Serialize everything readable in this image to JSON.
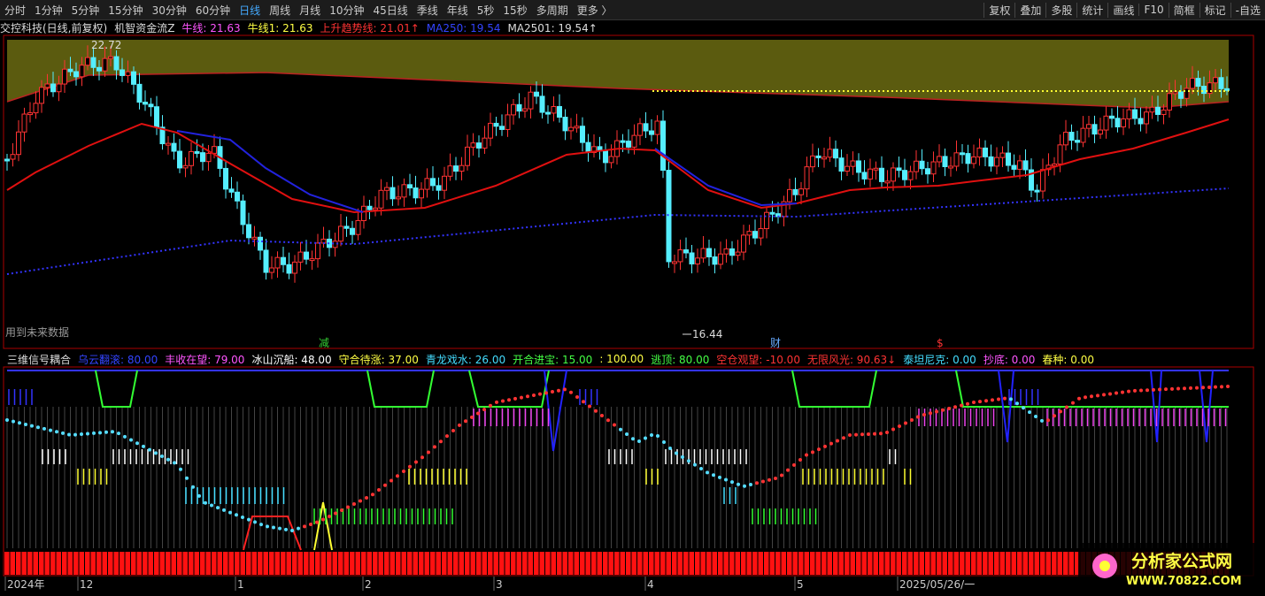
{
  "toolbar": {
    "periods": [
      "分时",
      "1分钟",
      "5分钟",
      "15分钟",
      "30分钟",
      "60分钟",
      "日线",
      "周线",
      "月线",
      "10分钟",
      "45日线",
      "季线",
      "年线",
      "5秒",
      "15秒",
      "多周期",
      "更多 〉"
    ],
    "active": "日线",
    "tools": [
      "复权",
      "叠加",
      "多股",
      "统计",
      "画线",
      "F10",
      "简框",
      "标记",
      "-自选"
    ]
  },
  "main_header": [
    {
      "text": "交控科技(日线,前复权)",
      "color": "#dddddd"
    },
    {
      "text": "机智资金流Z",
      "color": "#dddddd"
    },
    {
      "text": "牛线: 21.63",
      "color": "#ff55ff"
    },
    {
      "text": "牛线1: 21.63",
      "color": "#ffff44"
    },
    {
      "text": "上升趋势线: 21.01↑",
      "color": "#ff3333"
    },
    {
      "text": "MA250: 19.54",
      "color": "#3344ff"
    },
    {
      "text": "MA2501: 19.54↑",
      "color": "#dddddd"
    }
  ],
  "annotations": {
    "high": "22.72",
    "low": "16.44",
    "note": "用到未来数据",
    "mark1": "减",
    "mark2": "财",
    "mark3": "$"
  },
  "sub_header": [
    {
      "text": "三维信号耦合",
      "color": "#dddddd"
    },
    {
      "text": "乌云翻滚: 80.00",
      "color": "#3344ff"
    },
    {
      "text": "丰收在望: 79.00",
      "color": "#ff55ff"
    },
    {
      "text": "冰山沉船: 48.00",
      "color": "#ffffff"
    },
    {
      "text": "守合待涨: 37.00",
      "color": "#ffff44"
    },
    {
      "text": "青龙戏水: 26.00",
      "color": "#44ddff"
    },
    {
      "text": "开合进宝: 15.00",
      "color": "#44ff44"
    },
    {
      "text": ": 100.00",
      "color": "#ffff44"
    },
    {
      "text": "逃顶: 80.00",
      "color": "#44ff44"
    },
    {
      "text": "空仓观望: -10.00",
      "color": "#ff3333"
    },
    {
      "text": "无限风光: 90.63↓",
      "color": "#ff3333"
    },
    {
      "text": "泰坦尼克: 0.00",
      "color": "#44ddff"
    },
    {
      "text": "抄底: 0.00",
      "color": "#ff55ff"
    },
    {
      "text": "春种: 0.00",
      "color": "#ffff44"
    }
  ],
  "x_axis": [
    "2024年",
    "12",
    "1",
    "2",
    "3",
    "4",
    "5",
    "2025/05/26/一"
  ],
  "watermark": {
    "title": "分析家公式网",
    "url": "WWW.70822.COM"
  }
}
